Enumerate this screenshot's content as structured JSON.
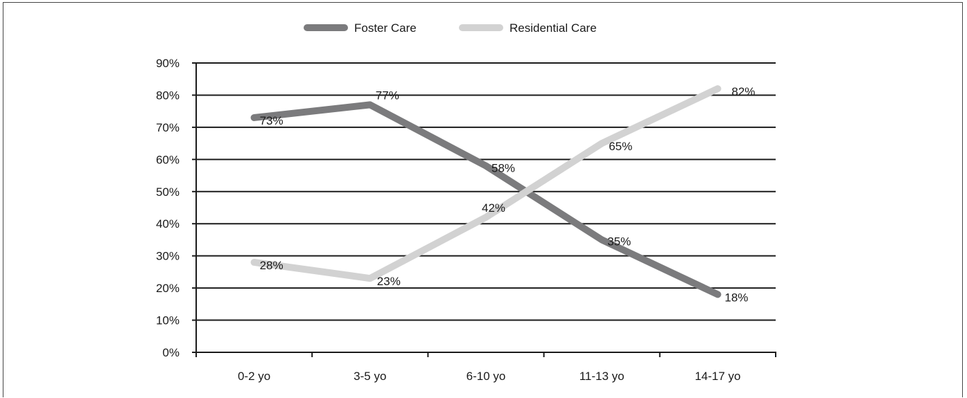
{
  "chart_data": {
    "type": "line",
    "categories": [
      "0-2 yo",
      "3-5 yo",
      "6-10 yo",
      "11-13 yo",
      "14-17 yo"
    ],
    "series": [
      {
        "name": "Foster Care",
        "values": [
          73,
          77,
          58,
          35,
          18
        ],
        "labels": [
          "73%",
          "77%",
          "58%",
          "35%",
          "18%"
        ],
        "color": "#7b7b7d"
      },
      {
        "name": "Residential Care",
        "values": [
          28,
          23,
          42,
          65,
          82
        ],
        "labels": [
          "28%",
          "23%",
          "42%",
          "65%",
          "82%"
        ],
        "color": "#d2d2d2"
      }
    ],
    "ylim": [
      0,
      90
    ],
    "ytick_values": [
      0,
      10,
      20,
      30,
      40,
      50,
      60,
      70,
      80,
      90
    ],
    "ytick_labels": [
      "0%",
      "10%",
      "20%",
      "30%",
      "40%",
      "50%",
      "60%",
      "70%",
      "80%",
      "90%"
    ],
    "grid": true,
    "legend_position": "top-center",
    "title": "",
    "xlabel": "",
    "ylabel": ""
  }
}
